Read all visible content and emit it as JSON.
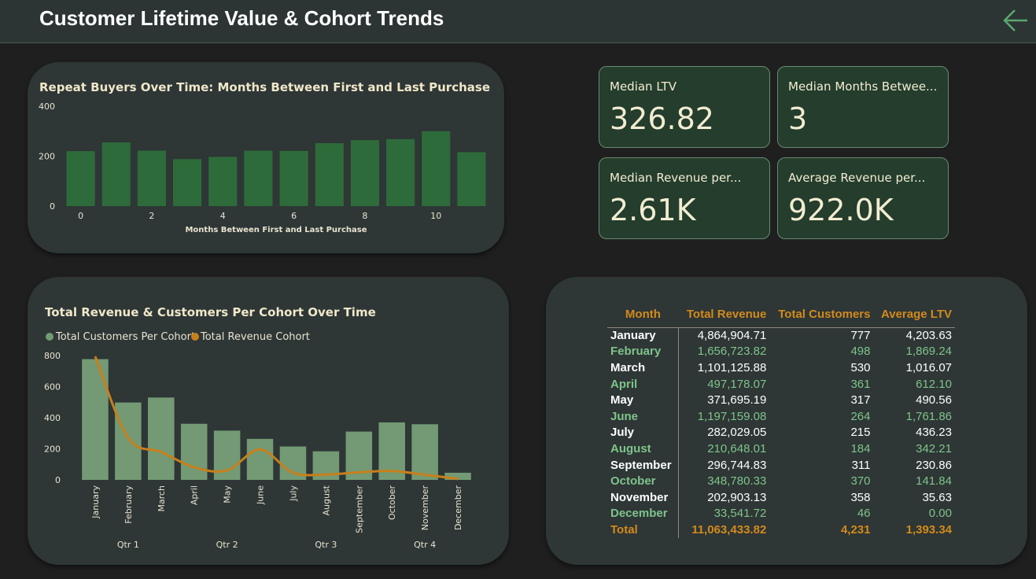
{
  "header": {
    "title": "Customer Lifetime Value & Cohort Trends",
    "back_icon": "arrow-left-icon"
  },
  "colors": {
    "bar_green": "#2e6b3a",
    "bar_light_green": "#739a74",
    "line_orange": "#c87f1a",
    "card_bg": "#243d2c",
    "accent_orange": "#d28a1c"
  },
  "kpis": [
    {
      "label": "Median LTV",
      "value": "326.82"
    },
    {
      "label": "Median Months Betwee...",
      "value": "3"
    },
    {
      "label": "Median Revenue per...",
      "value": "2.61K"
    },
    {
      "label": "Average Revenue per...",
      "value": "922.0K"
    }
  ],
  "chart_data": [
    {
      "type": "bar",
      "title": "Repeat Buyers Over Time: Months Between First and Last Purchase",
      "xlabel": "Months Between First and Last Purchase",
      "ylabel": "",
      "x": [
        0,
        1,
        2,
        3,
        4,
        5,
        6,
        7,
        8,
        9,
        10,
        11
      ],
      "values": [
        220,
        255,
        222,
        188,
        197,
        222,
        221,
        252,
        264,
        268,
        300,
        216
      ],
      "x_ticks": [
        "0",
        "2",
        "4",
        "6",
        "8",
        "10"
      ],
      "y_ticks": [
        "0",
        "200",
        "400"
      ],
      "ylim": [
        0,
        400
      ],
      "grid": false
    },
    {
      "type": "bar",
      "title": "Total Revenue & Customers Per Cohort Over Time",
      "xlabel": "",
      "ylabel": "",
      "legend_placement": "top-left",
      "categories": [
        "January",
        "February",
        "March",
        "April",
        "May",
        "June",
        "July",
        "August",
        "September",
        "October",
        "November",
        "December"
      ],
      "quarters": [
        "Qtr 1",
        "Qtr 2",
        "Qtr 3",
        "Qtr 4"
      ],
      "series": [
        {
          "name": "Total Customers Per Cohort",
          "type": "bar",
          "values": [
            777,
            498,
            530,
            361,
            317,
            264,
            215,
            184,
            311,
            370,
            358,
            46
          ]
        },
        {
          "name": "Total Revenue Cohort",
          "type": "line",
          "values": [
            4864904.71,
            1656723.82,
            1101125.88,
            497178.07,
            371695.19,
            1197159.08,
            282029.05,
            210648.01,
            296744.83,
            348780.33,
            202903.13,
            33541.72
          ]
        }
      ],
      "y_ticks": [
        "0",
        "200",
        "400",
        "600",
        "800"
      ],
      "ylim": [
        0,
        800
      ],
      "grid": false
    }
  ],
  "table": {
    "headers": [
      "Month",
      "Total Revenue",
      "Total Customers",
      "Average LTV"
    ],
    "rows": [
      [
        "January",
        "4,864,904.71",
        "777",
        "4,203.63"
      ],
      [
        "February",
        "1,656,723.82",
        "498",
        "1,869.24"
      ],
      [
        "March",
        "1,101,125.88",
        "530",
        "1,016.07"
      ],
      [
        "April",
        "497,178.07",
        "361",
        "612.10"
      ],
      [
        "May",
        "371,695.19",
        "317",
        "490.56"
      ],
      [
        "June",
        "1,197,159.08",
        "264",
        "1,761.86"
      ],
      [
        "July",
        "282,029.05",
        "215",
        "436.23"
      ],
      [
        "August",
        "210,648.01",
        "184",
        "342.21"
      ],
      [
        "September",
        "296,744.83",
        "311",
        "230.86"
      ],
      [
        "October",
        "348,780.33",
        "370",
        "141.84"
      ],
      [
        "November",
        "202,903.13",
        "358",
        "35.63"
      ],
      [
        "December",
        "33,541.72",
        "46",
        "0.00"
      ]
    ],
    "total": [
      "Total",
      "11,063,433.82",
      "4,231",
      "1,393.34"
    ]
  }
}
